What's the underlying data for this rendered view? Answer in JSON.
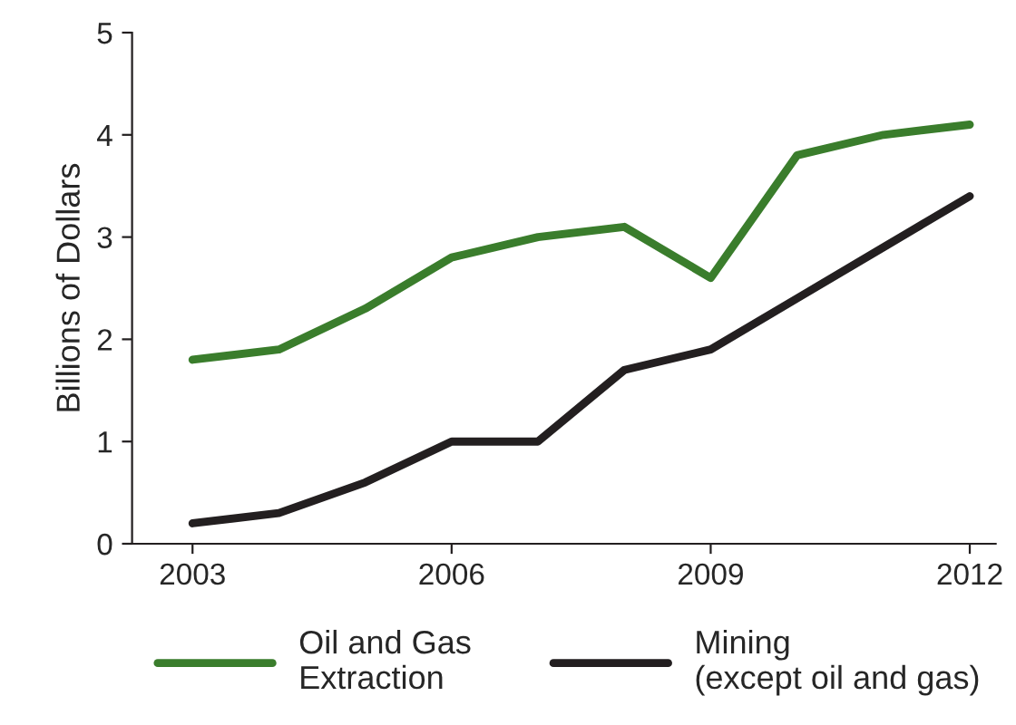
{
  "chart_data": {
    "type": "line",
    "ylabel": "Billions of Dollars",
    "x": [
      2003,
      2004,
      2005,
      2006,
      2007,
      2008,
      2009,
      2010,
      2011,
      2012
    ],
    "series": [
      {
        "name": "Oil and Gas\nExtraction",
        "color": "#3a7d2c",
        "values": [
          1.8,
          1.9,
          2.3,
          2.8,
          3.0,
          3.1,
          2.6,
          3.8,
          4.0,
          4.1
        ]
      },
      {
        "name": "Mining\n(except oil and gas)",
        "color": "#231f20",
        "values": [
          0.2,
          0.3,
          0.6,
          1.0,
          1.0,
          1.7,
          1.9,
          2.4,
          2.9,
          3.4
        ]
      }
    ],
    "xlim": [
      2002.3,
      2012.3
    ],
    "xticks": [
      2003,
      2006,
      2009,
      2012
    ],
    "ylim": [
      0,
      5
    ],
    "yticks": [
      0,
      1,
      2,
      3,
      4,
      5
    ],
    "grid": false,
    "legend": "bottom",
    "marker": "none",
    "line_style": "solid"
  }
}
